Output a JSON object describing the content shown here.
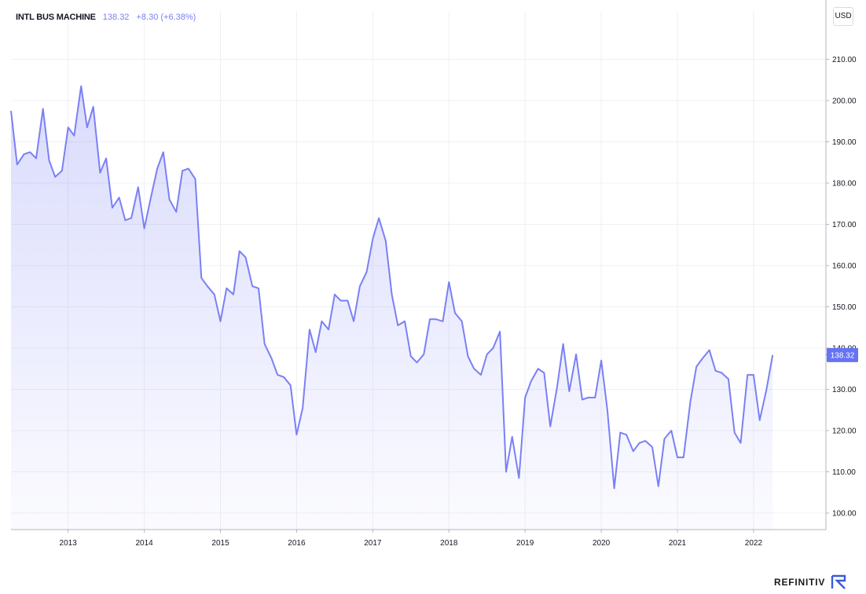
{
  "chart_data": {
    "type": "area",
    "title": "INTL BUS MACHINE",
    "last_price": "138.32",
    "change": "+8.30 (+6.38%)",
    "currency": "USD",
    "ylim": [
      96,
      216
    ],
    "xlim": [
      2012.25,
      2022.95
    ],
    "y_ticks": [
      100,
      110,
      120,
      130,
      140,
      150,
      160,
      170,
      180,
      190,
      200,
      210
    ],
    "y_tick_labels": [
      "100.00",
      "110.00",
      "120.00",
      "130.00",
      "140.00",
      "150.00",
      "160.00",
      "170.00",
      "180.00",
      "190.00",
      "200.00",
      "210.00"
    ],
    "x_ticks": [
      2013,
      2014,
      2015,
      2016,
      2017,
      2018,
      2019,
      2020,
      2021,
      2022
    ],
    "x_tick_labels": [
      "2013",
      "2014",
      "2015",
      "2016",
      "2017",
      "2018",
      "2019",
      "2020",
      "2021",
      "2022"
    ],
    "grid": true,
    "line_color": "#7a80f5",
    "fill_color": "#7a80f5",
    "x": [
      2012.25,
      2012.33,
      2012.42,
      2012.5,
      2012.58,
      2012.67,
      2012.75,
      2012.83,
      2012.92,
      2013.0,
      2013.08,
      2013.17,
      2013.25,
      2013.33,
      2013.42,
      2013.5,
      2013.58,
      2013.67,
      2013.75,
      2013.83,
      2013.92,
      2014.0,
      2014.08,
      2014.17,
      2014.25,
      2014.33,
      2014.42,
      2014.5,
      2014.58,
      2014.67,
      2014.75,
      2014.83,
      2014.92,
      2015.0,
      2015.08,
      2015.17,
      2015.25,
      2015.33,
      2015.42,
      2015.5,
      2015.58,
      2015.67,
      2015.75,
      2015.83,
      2015.92,
      2016.0,
      2016.08,
      2016.17,
      2016.25,
      2016.33,
      2016.42,
      2016.5,
      2016.58,
      2016.67,
      2016.75,
      2016.83,
      2016.92,
      2017.0,
      2017.08,
      2017.17,
      2017.25,
      2017.33,
      2017.42,
      2017.5,
      2017.58,
      2017.67,
      2017.75,
      2017.83,
      2017.92,
      2018.0,
      2018.08,
      2018.17,
      2018.25,
      2018.33,
      2018.42,
      2018.5,
      2018.58,
      2018.67,
      2018.75,
      2018.83,
      2018.92,
      2019.0,
      2019.08,
      2019.17,
      2019.25,
      2019.33,
      2019.42,
      2019.5,
      2019.58,
      2019.67,
      2019.75,
      2019.83,
      2019.92,
      2020.0,
      2020.08,
      2020.17,
      2020.25,
      2020.33,
      2020.42,
      2020.5,
      2020.58,
      2020.67,
      2020.75,
      2020.83,
      2020.92,
      2021.0,
      2021.08,
      2021.17,
      2021.25,
      2021.33,
      2021.42,
      2021.5,
      2021.58,
      2021.67,
      2021.75,
      2021.83,
      2021.92,
      2022.0,
      2022.08,
      2022.17,
      2022.25
    ],
    "y": [
      197.5,
      184.5,
      187,
      187.5,
      186,
      198,
      185.5,
      181.5,
      183,
      193.5,
      191.5,
      203.5,
      193.5,
      198.5,
      182.5,
      186,
      174,
      176.5,
      171,
      171.5,
      179,
      169,
      176,
      183.5,
      187.5,
      176,
      173,
      183,
      183.5,
      181,
      157,
      155,
      153,
      146.5,
      154.5,
      153,
      163.5,
      162,
      155,
      154.5,
      141,
      137.5,
      133.5,
      133,
      131,
      119,
      125.5,
      144.5,
      139,
      146.5,
      144.5,
      153,
      151.5,
      151.5,
      146.5,
      155,
      158.5,
      166.5,
      171.5,
      166,
      153,
      145.5,
      146.5,
      138,
      136.5,
      138.5,
      147,
      147,
      146.5,
      156,
      148.5,
      146.5,
      138,
      135,
      133.5,
      138.5,
      140,
      144,
      110,
      118.5,
      108.5,
      128,
      132,
      135,
      134,
      121,
      130.5,
      141,
      129.5,
      138.5,
      127.5,
      128,
      128,
      137,
      125,
      106,
      119.5,
      119,
      115,
      117,
      117.5,
      116,
      106.5,
      118,
      120,
      113.5,
      113.5,
      127,
      135.5,
      137.5,
      139.5,
      134.5,
      134,
      132.5,
      119.5,
      117,
      133.5,
      133.5,
      122.5,
      130,
      138.32
    ]
  }
}
